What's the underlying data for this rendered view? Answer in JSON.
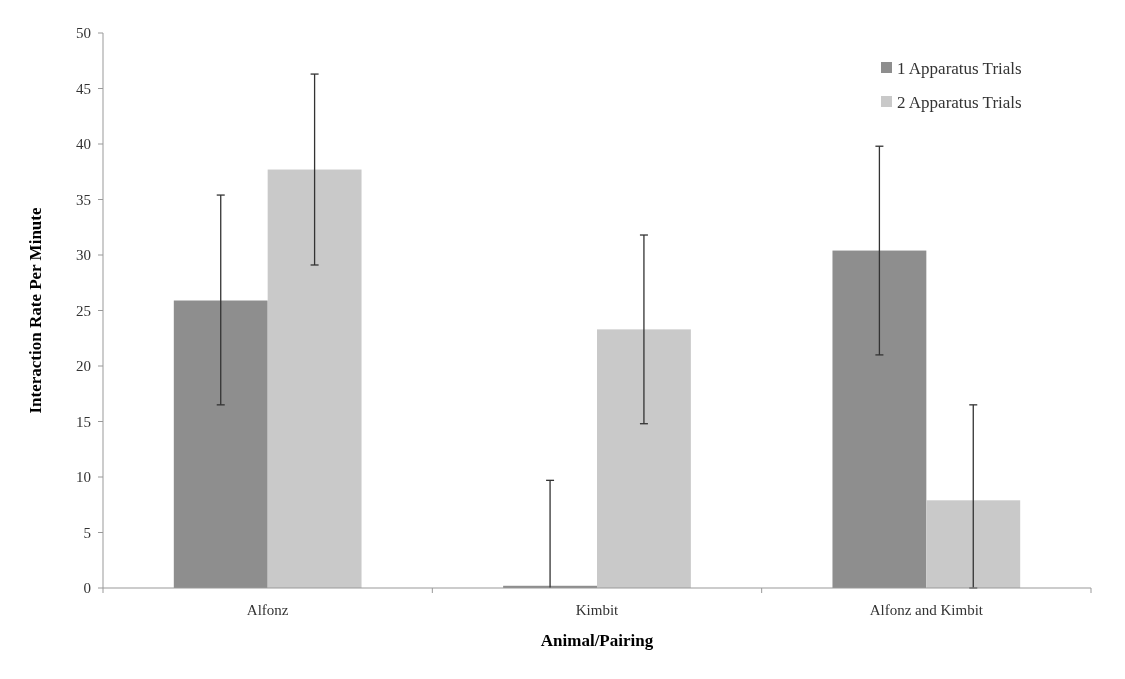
{
  "chart_data": {
    "type": "bar",
    "xlabel": "Animal/Pairing",
    "ylabel": "Interaction Rate Per Minute",
    "categories": [
      "Alfonz",
      "Kimbit",
      "Alfonz and Kimbit"
    ],
    "series": [
      {
        "name": "1 Apparatus Trials",
        "color": "#8e8e8e",
        "values": [
          25.9,
          0.2,
          30.4
        ],
        "errors": [
          [
            16.5,
            35.4
          ],
          [
            0,
            9.7
          ],
          [
            21.0,
            39.8
          ]
        ]
      },
      {
        "name": "2 Apparatus Trials",
        "color": "#c9c9c9",
        "values": [
          37.7,
          23.3,
          7.9
        ],
        "errors": [
          [
            29.1,
            46.3
          ],
          [
            14.8,
            31.8
          ],
          [
            0,
            16.5
          ]
        ]
      }
    ],
    "ylim": [
      0,
      50
    ],
    "yticks": [
      0,
      5,
      10,
      15,
      20,
      25,
      30,
      35,
      40,
      45,
      50
    ],
    "grid": false,
    "legend": "top right"
  }
}
